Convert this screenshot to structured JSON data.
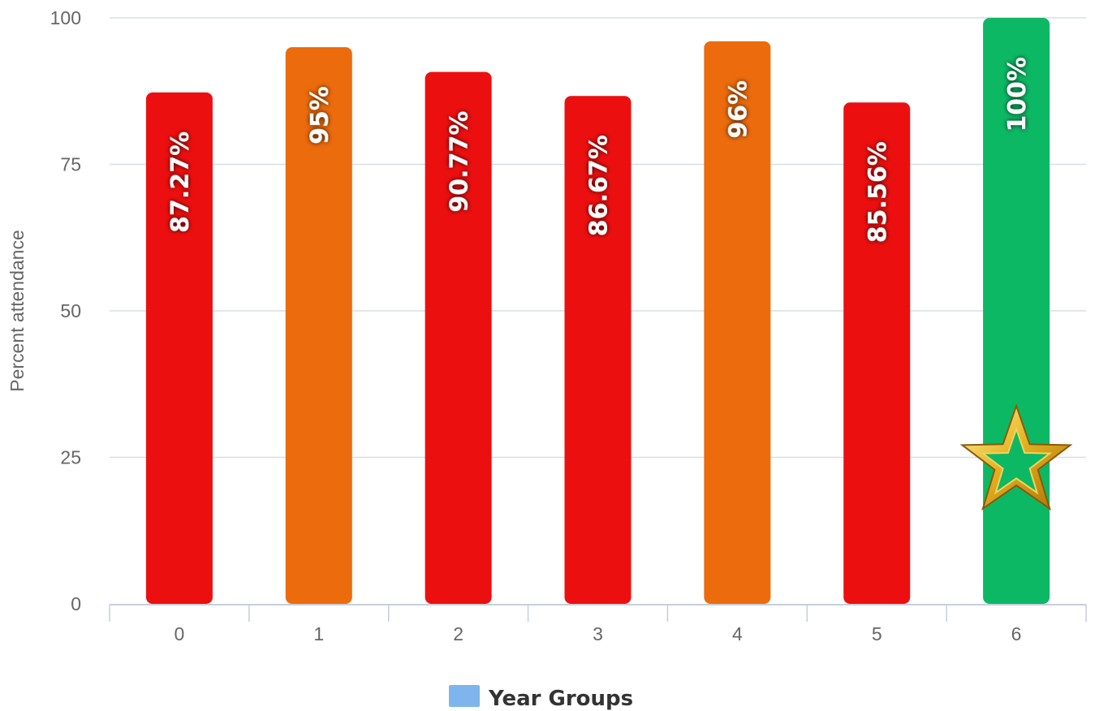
{
  "chart_data": {
    "type": "bar",
    "categories": [
      "0",
      "1",
      "2",
      "3",
      "4",
      "5",
      "6"
    ],
    "series": [
      {
        "name": "Year Groups",
        "values": [
          87.27,
          95,
          90.77,
          86.67,
          96,
          85.56,
          100
        ],
        "labels": [
          "87.27%",
          "95%",
          "90.77%",
          "86.67%",
          "96%",
          "85.56%",
          "100%"
        ],
        "colors": [
          "#ec0f0f",
          "#ec6b0c",
          "#ec0f0f",
          "#ec0f0f",
          "#ec6b0c",
          "#ec0f0f",
          "#0db864"
        ]
      }
    ],
    "xlabel": "",
    "ylabel": "Percent attendance",
    "ylim": [
      0,
      100
    ],
    "yticks": [
      "0",
      "25",
      "50",
      "75",
      "100"
    ],
    "grid": true,
    "legend": {
      "label": "Year Groups",
      "color": "#7db5ec",
      "position": "bottom-center"
    },
    "highlight": {
      "category": "6",
      "icon": "gold-star-icon"
    }
  }
}
